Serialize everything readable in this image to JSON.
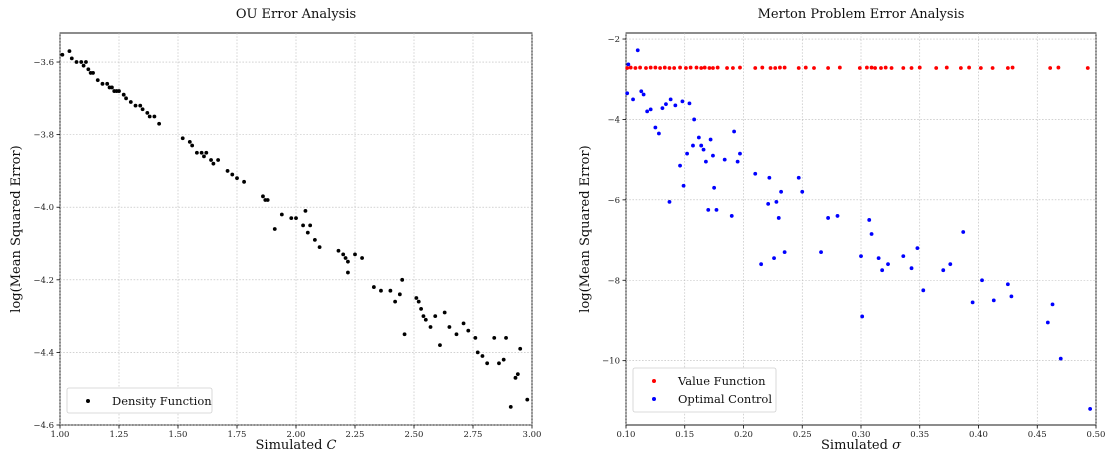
{
  "chart_data": [
    {
      "type": "scatter",
      "title": "OU Error Analysis",
      "xlabel_text": "Simulated ",
      "xlabel_sym": "C",
      "ylabel": "log(Mean Squared Error)",
      "xlim": [
        1.0,
        3.0
      ],
      "ylim": [
        -4.6,
        -3.52
      ],
      "xticks": [
        1.0,
        1.25,
        1.5,
        1.75,
        2.0,
        2.25,
        2.5,
        2.75,
        3.0
      ],
      "xtick_labels": [
        "1.00",
        "1.25",
        "1.50",
        "1.75",
        "2.00",
        "2.25",
        "2.50",
        "2.75",
        "3.00"
      ],
      "yticks": [
        -4.6,
        -4.4,
        -4.2,
        -4.0,
        -3.8,
        -3.6
      ],
      "ytick_labels": [
        "−4.6",
        "−4.4",
        "−4.2",
        "−4.0",
        "−3.8",
        "−3.6"
      ],
      "grid": true,
      "legend_position": "lower-left",
      "series": [
        {
          "name": "Density Function",
          "color": "#000000",
          "points": [
            [
              1.01,
              -3.58
            ],
            [
              1.04,
              -3.57
            ],
            [
              1.05,
              -3.59
            ],
            [
              1.07,
              -3.6
            ],
            [
              1.09,
              -3.6
            ],
            [
              1.1,
              -3.61
            ],
            [
              1.11,
              -3.6
            ],
            [
              1.12,
              -3.62
            ],
            [
              1.13,
              -3.63
            ],
            [
              1.14,
              -3.63
            ],
            [
              1.16,
              -3.65
            ],
            [
              1.18,
              -3.66
            ],
            [
              1.2,
              -3.66
            ],
            [
              1.21,
              -3.67
            ],
            [
              1.22,
              -3.67
            ],
            [
              1.23,
              -3.68
            ],
            [
              1.24,
              -3.68
            ],
            [
              1.25,
              -3.68
            ],
            [
              1.27,
              -3.69
            ],
            [
              1.28,
              -3.7
            ],
            [
              1.3,
              -3.71
            ],
            [
              1.32,
              -3.72
            ],
            [
              1.34,
              -3.72
            ],
            [
              1.35,
              -3.73
            ],
            [
              1.37,
              -3.74
            ],
            [
              1.38,
              -3.75
            ],
            [
              1.4,
              -3.75
            ],
            [
              1.42,
              -3.77
            ],
            [
              1.52,
              -3.81
            ],
            [
              1.55,
              -3.82
            ],
            [
              1.56,
              -3.83
            ],
            [
              1.58,
              -3.85
            ],
            [
              1.6,
              -3.85
            ],
            [
              1.61,
              -3.86
            ],
            [
              1.62,
              -3.85
            ],
            [
              1.64,
              -3.87
            ],
            [
              1.65,
              -3.88
            ],
            [
              1.67,
              -3.87
            ],
            [
              1.71,
              -3.9
            ],
            [
              1.73,
              -3.91
            ],
            [
              1.75,
              -3.92
            ],
            [
              1.78,
              -3.93
            ],
            [
              1.86,
              -3.97
            ],
            [
              1.87,
              -3.98
            ],
            [
              1.88,
              -3.98
            ],
            [
              1.91,
              -4.06
            ],
            [
              1.94,
              -4.02
            ],
            [
              1.98,
              -4.03
            ],
            [
              2.0,
              -4.03
            ],
            [
              2.03,
              -4.05
            ],
            [
              2.04,
              -4.01
            ],
            [
              2.05,
              -4.07
            ],
            [
              2.06,
              -4.05
            ],
            [
              2.08,
              -4.09
            ],
            [
              2.1,
              -4.11
            ],
            [
              2.18,
              -4.12
            ],
            [
              2.2,
              -4.13
            ],
            [
              2.21,
              -4.14
            ],
            [
              2.22,
              -4.15
            ],
            [
              2.22,
              -4.18
            ],
            [
              2.25,
              -4.13
            ],
            [
              2.28,
              -4.14
            ],
            [
              2.33,
              -4.22
            ],
            [
              2.36,
              -4.23
            ],
            [
              2.4,
              -4.23
            ],
            [
              2.42,
              -4.26
            ],
            [
              2.44,
              -4.24
            ],
            [
              2.45,
              -4.2
            ],
            [
              2.46,
              -4.35
            ],
            [
              2.51,
              -4.25
            ],
            [
              2.52,
              -4.26
            ],
            [
              2.53,
              -4.28
            ],
            [
              2.54,
              -4.3
            ],
            [
              2.55,
              -4.31
            ],
            [
              2.57,
              -4.33
            ],
            [
              2.59,
              -4.3
            ],
            [
              2.61,
              -4.38
            ],
            [
              2.63,
              -4.29
            ],
            [
              2.65,
              -4.33
            ],
            [
              2.68,
              -4.35
            ],
            [
              2.71,
              -4.32
            ],
            [
              2.73,
              -4.34
            ],
            [
              2.76,
              -4.36
            ],
            [
              2.77,
              -4.4
            ],
            [
              2.79,
              -4.41
            ],
            [
              2.81,
              -4.43
            ],
            [
              2.84,
              -4.36
            ],
            [
              2.86,
              -4.43
            ],
            [
              2.88,
              -4.42
            ],
            [
              2.89,
              -4.36
            ],
            [
              2.91,
              -4.55
            ],
            [
              2.93,
              -4.47
            ],
            [
              2.94,
              -4.46
            ],
            [
              2.95,
              -4.39
            ],
            [
              2.98,
              -4.53
            ]
          ]
        }
      ]
    },
    {
      "type": "scatter",
      "title": "Merton Problem Error Analysis",
      "xlabel_text": "Simulated ",
      "xlabel_sym": "σ",
      "ylabel": "log(Mean Squared Error)",
      "xlim": [
        0.1,
        0.5
      ],
      "ylim": [
        -11.6,
        -1.85
      ],
      "xticks": [
        0.1,
        0.15,
        0.2,
        0.25,
        0.3,
        0.35,
        0.4,
        0.45,
        0.5
      ],
      "xtick_labels": [
        "0.10",
        "0.15",
        "0.20",
        "0.25",
        "0.30",
        "0.35",
        "0.40",
        "0.45",
        "0.50"
      ],
      "yticks": [
        -10,
        -8,
        -6,
        -4,
        -2
      ],
      "ytick_labels": [
        "−10",
        "−8",
        "−6",
        "−4",
        "−2"
      ],
      "grid": true,
      "legend_position": "lower-left",
      "series": [
        {
          "name": "Value Function",
          "color": "#ff0000",
          "points": [
            [
              0.101,
              -2.72
            ],
            [
              0.104,
              -2.71
            ],
            [
              0.108,
              -2.72
            ],
            [
              0.112,
              -2.71
            ],
            [
              0.117,
              -2.72
            ],
            [
              0.121,
              -2.71
            ],
            [
              0.125,
              -2.71
            ],
            [
              0.129,
              -2.72
            ],
            [
              0.133,
              -2.71
            ],
            [
              0.137,
              -2.72
            ],
            [
              0.141,
              -2.72
            ],
            [
              0.146,
              -2.71
            ],
            [
              0.151,
              -2.72
            ],
            [
              0.155,
              -2.71
            ],
            [
              0.16,
              -2.71
            ],
            [
              0.164,
              -2.72
            ],
            [
              0.167,
              -2.71
            ],
            [
              0.171,
              -2.72
            ],
            [
              0.174,
              -2.72
            ],
            [
              0.178,
              -2.71
            ],
            [
              0.186,
              -2.72
            ],
            [
              0.191,
              -2.72
            ],
            [
              0.197,
              -2.71
            ],
            [
              0.21,
              -2.72
            ],
            [
              0.216,
              -2.71
            ],
            [
              0.223,
              -2.72
            ],
            [
              0.227,
              -2.72
            ],
            [
              0.231,
              -2.71
            ],
            [
              0.235,
              -2.71
            ],
            [
              0.247,
              -2.72
            ],
            [
              0.253,
              -2.71
            ],
            [
              0.26,
              -2.72
            ],
            [
              0.272,
              -2.72
            ],
            [
              0.282,
              -2.71
            ],
            [
              0.299,
              -2.72
            ],
            [
              0.305,
              -2.71
            ],
            [
              0.309,
              -2.71
            ],
            [
              0.312,
              -2.72
            ],
            [
              0.317,
              -2.72
            ],
            [
              0.321,
              -2.71
            ],
            [
              0.326,
              -2.72
            ],
            [
              0.336,
              -2.72
            ],
            [
              0.343,
              -2.72
            ],
            [
              0.35,
              -2.71
            ],
            [
              0.364,
              -2.72
            ],
            [
              0.373,
              -2.71
            ],
            [
              0.385,
              -2.72
            ],
            [
              0.392,
              -2.71
            ],
            [
              0.402,
              -2.72
            ],
            [
              0.412,
              -2.72
            ],
            [
              0.425,
              -2.72
            ],
            [
              0.429,
              -2.71
            ],
            [
              0.461,
              -2.72
            ],
            [
              0.468,
              -2.71
            ],
            [
              0.493,
              -2.72
            ]
          ]
        },
        {
          "name": "Optimal Control",
          "color": "#0000ff",
          "points": [
            [
              0.101,
              -3.35
            ],
            [
              0.102,
              -2.63
            ],
            [
              0.106,
              -3.5
            ],
            [
              0.11,
              -2.28
            ],
            [
              0.113,
              -3.3
            ],
            [
              0.115,
              -3.38
            ],
            [
              0.118,
              -3.8
            ],
            [
              0.121,
              -3.75
            ],
            [
              0.125,
              -4.2
            ],
            [
              0.128,
              -4.35
            ],
            [
              0.131,
              -3.72
            ],
            [
              0.134,
              -3.62
            ],
            [
              0.137,
              -6.05
            ],
            [
              0.138,
              -3.5
            ],
            [
              0.142,
              -3.65
            ],
            [
              0.146,
              -5.15
            ],
            [
              0.148,
              -3.55
            ],
            [
              0.149,
              -5.65
            ],
            [
              0.152,
              -4.85
            ],
            [
              0.154,
              -3.6
            ],
            [
              0.157,
              -4.65
            ],
            [
              0.158,
              -4.0
            ],
            [
              0.162,
              -4.45
            ],
            [
              0.164,
              -4.65
            ],
            [
              0.166,
              -4.75
            ],
            [
              0.168,
              -5.05
            ],
            [
              0.17,
              -6.25
            ],
            [
              0.172,
              -4.5
            ],
            [
              0.174,
              -4.9
            ],
            [
              0.175,
              -5.7
            ],
            [
              0.177,
              -6.25
            ],
            [
              0.184,
              -5.0
            ],
            [
              0.19,
              -6.4
            ],
            [
              0.192,
              -4.3
            ],
            [
              0.195,
              -5.05
            ],
            [
              0.197,
              -4.85
            ],
            [
              0.21,
              -5.35
            ],
            [
              0.215,
              -7.6
            ],
            [
              0.221,
              -6.1
            ],
            [
              0.222,
              -5.45
            ],
            [
              0.226,
              -7.45
            ],
            [
              0.228,
              -6.05
            ],
            [
              0.23,
              -6.45
            ],
            [
              0.232,
              -5.8
            ],
            [
              0.235,
              -7.3
            ],
            [
              0.247,
              -5.45
            ],
            [
              0.25,
              -5.8
            ],
            [
              0.266,
              -7.3
            ],
            [
              0.272,
              -6.45
            ],
            [
              0.28,
              -6.4
            ],
            [
              0.3,
              -7.4
            ],
            [
              0.301,
              -8.9
            ],
            [
              0.307,
              -6.5
            ],
            [
              0.309,
              -6.85
            ],
            [
              0.315,
              -7.45
            ],
            [
              0.318,
              -7.75
            ],
            [
              0.323,
              -7.6
            ],
            [
              0.336,
              -7.4
            ],
            [
              0.343,
              -7.7
            ],
            [
              0.348,
              -7.2
            ],
            [
              0.353,
              -8.25
            ],
            [
              0.37,
              -7.75
            ],
            [
              0.376,
              -7.6
            ],
            [
              0.387,
              -6.8
            ],
            [
              0.395,
              -8.55
            ],
            [
              0.403,
              -8.0
            ],
            [
              0.413,
              -8.5
            ],
            [
              0.425,
              -8.1
            ],
            [
              0.428,
              -8.4
            ],
            [
              0.459,
              -9.05
            ],
            [
              0.463,
              -8.6
            ],
            [
              0.47,
              -9.95
            ],
            [
              0.495,
              -11.2
            ]
          ]
        }
      ]
    }
  ]
}
